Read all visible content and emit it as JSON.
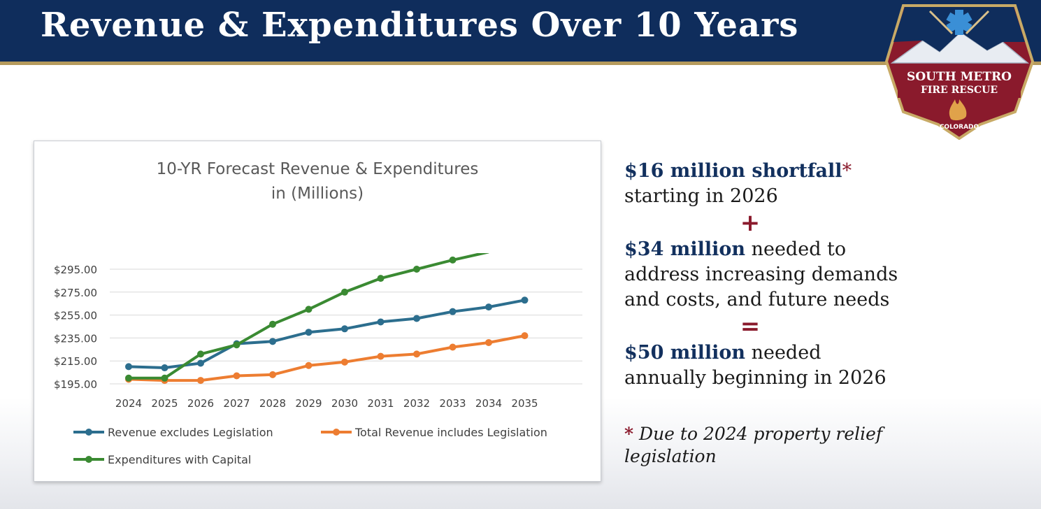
{
  "header": {
    "title": "Revenue & Expenditures Over 10 Years"
  },
  "logo": {
    "line1": "SOUTH METRO",
    "line2": "FIRE RESCUE",
    "line3": "COLORADO"
  },
  "colors": {
    "header_bg": "#0f2d5c",
    "accent_gold": "#b59a5c",
    "logo_red": "#8a1a2c",
    "series_blue": "#2c6e8e",
    "series_orange": "#ed7d31",
    "series_green": "#3a8a32"
  },
  "chart_data": {
    "type": "line",
    "title": "10-YR Forecast Revenue & Expenditures",
    "subtitle": "in (Millions)",
    "categories": [
      "2024",
      "2025",
      "2026",
      "2027",
      "2028",
      "2029",
      "2030",
      "2031",
      "2032",
      "2033",
      "2034",
      "2035"
    ],
    "y_ticks": [
      "$195.00",
      "$215.00",
      "$235.00",
      "$255.00",
      "$275.00",
      "$295.00"
    ],
    "ylim": [
      195,
      295
    ],
    "grid": true,
    "legend_position": "bottom",
    "series": [
      {
        "name": "Revenue excludes Legislation",
        "color": "#2c6e8e",
        "values": [
          210,
          209,
          213,
          230,
          232,
          240,
          243,
          249,
          252,
          258,
          262,
          268
        ]
      },
      {
        "name": "Total Revenue includes Legislation",
        "color": "#ed7d31",
        "values": [
          199,
          198,
          198,
          202,
          203,
          211,
          214,
          219,
          221,
          227,
          231,
          237
        ]
      },
      {
        "name": "Expenditures with Capital",
        "color": "#3a8a32",
        "values": [
          200,
          200,
          221,
          229,
          247,
          260,
          275,
          287,
          295,
          303,
          310,
          null
        ]
      }
    ]
  },
  "right_panel": {
    "shortfall_bold": "$16 million shortfall",
    "shortfall_star": "*",
    "shortfall_rest": "starting in 2026",
    "plus": "+",
    "needs_bold": "$34 million",
    "needs_rest1": " needed to",
    "needs_rest2": "address increasing demands",
    "needs_rest3": "and costs, and future needs",
    "equals": "=",
    "total_bold": "$50 million",
    "total_rest1": " needed",
    "total_rest2": "annually beginning in 2026",
    "footnote_star": "*",
    "footnote_line1": " Due to 2024 property relief",
    "footnote_line2": "legislation"
  }
}
